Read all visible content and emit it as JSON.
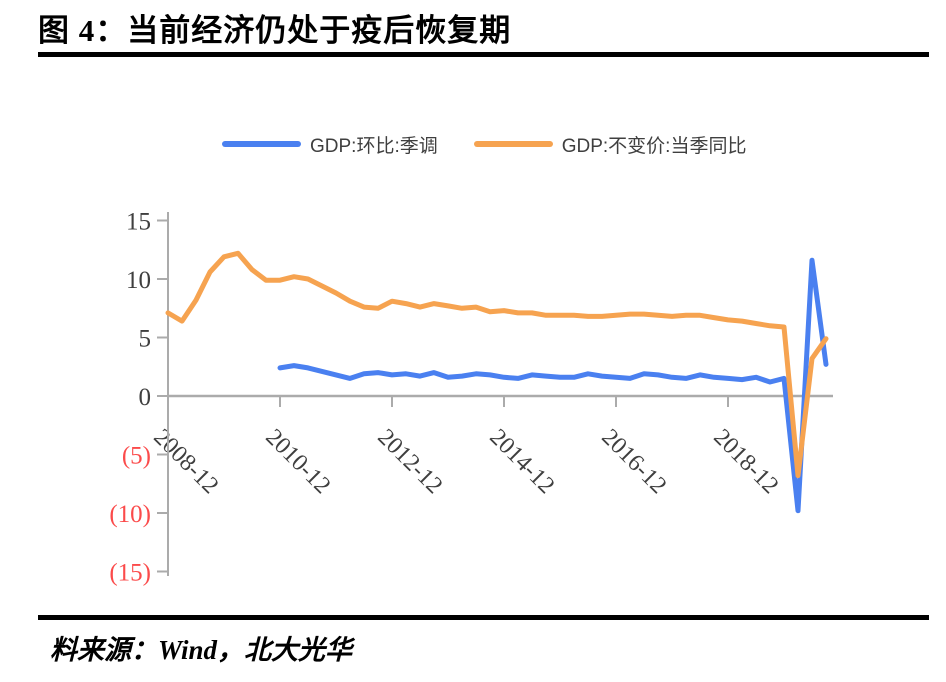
{
  "figure": {
    "title": "图 4：当前经济仍处于疫后恢复期",
    "source": "料来源：Wind，北大光华"
  },
  "chart_data": {
    "type": "line",
    "title": "",
    "xlabel": "",
    "ylabel": "",
    "ylim": [
      -15,
      15
    ],
    "grid": false,
    "legend_position": "top-center",
    "y_ticks": [
      15,
      10,
      5,
      0,
      -5,
      -10,
      -15
    ],
    "y_tick_labels": [
      "15",
      "10",
      "5",
      "0",
      "(5)",
      "(10)",
      "(15)"
    ],
    "x_tick_labels": [
      "2008-12",
      "2010-12",
      "2012-12",
      "2014-12",
      "2016-12",
      "2018-12"
    ],
    "colors": {
      "tick": "#3f3f3f",
      "negative_tick": "#fb4b4b",
      "axis": "#ababab"
    },
    "quarters": [
      "2008Q4",
      "2009Q1",
      "2009Q2",
      "2009Q3",
      "2009Q4",
      "2010Q1",
      "2010Q2",
      "2010Q3",
      "2010Q4",
      "2011Q1",
      "2011Q2",
      "2011Q3",
      "2011Q4",
      "2012Q1",
      "2012Q2",
      "2012Q3",
      "2012Q4",
      "2013Q1",
      "2013Q2",
      "2013Q3",
      "2013Q4",
      "2014Q1",
      "2014Q2",
      "2014Q3",
      "2014Q4",
      "2015Q1",
      "2015Q2",
      "2015Q3",
      "2015Q4",
      "2016Q1",
      "2016Q2",
      "2016Q3",
      "2016Q4",
      "2017Q1",
      "2017Q2",
      "2017Q3",
      "2017Q4",
      "2018Q1",
      "2018Q2",
      "2018Q3",
      "2018Q4",
      "2019Q1",
      "2019Q2",
      "2019Q3",
      "2019Q4",
      "2020Q1",
      "2020Q2",
      "2020Q3"
    ],
    "series": [
      {
        "name": "GDP:环比:季调",
        "color": "#4a80f0",
        "values": [
          null,
          null,
          null,
          null,
          null,
          null,
          null,
          null,
          2.4,
          2.6,
          2.4,
          2.1,
          1.8,
          1.5,
          1.9,
          2.0,
          1.8,
          1.9,
          1.7,
          2.0,
          1.6,
          1.7,
          1.9,
          1.8,
          1.6,
          1.5,
          1.8,
          1.7,
          1.6,
          1.6,
          1.9,
          1.7,
          1.6,
          1.5,
          1.9,
          1.8,
          1.6,
          1.5,
          1.8,
          1.6,
          1.5,
          1.4,
          1.6,
          1.2,
          1.5,
          -9.8,
          11.6,
          2.7
        ]
      },
      {
        "name": "GDP:不变价:当季同比",
        "color": "#f6a350",
        "values": [
          7.1,
          6.4,
          8.2,
          10.6,
          11.9,
          12.2,
          10.8,
          9.9,
          9.9,
          10.2,
          10.0,
          9.4,
          8.8,
          8.1,
          7.6,
          7.5,
          8.1,
          7.9,
          7.6,
          7.9,
          7.7,
          7.5,
          7.6,
          7.2,
          7.3,
          7.1,
          7.1,
          6.9,
          6.9,
          6.9,
          6.8,
          6.8,
          6.9,
          7.0,
          7.0,
          6.9,
          6.8,
          6.9,
          6.9,
          6.7,
          6.5,
          6.4,
          6.2,
          6.0,
          5.9,
          -6.8,
          3.2,
          4.9
        ]
      }
    ]
  }
}
